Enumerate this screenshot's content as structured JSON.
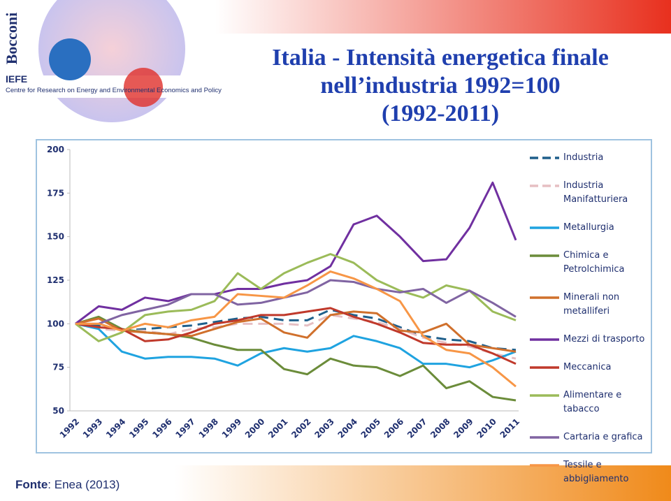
{
  "header": {
    "logo_name": "Bocconi",
    "logo_acronym": "IEFE",
    "logo_subtitle": "Centre for Research on Energy and Environmental Economics and Policy"
  },
  "chart_data": {
    "type": "line",
    "title": [
      "Italia - Intensità energetica finale",
      "nell’industria 1992=100",
      "(1992-2011)"
    ],
    "categories": [
      "1992",
      "1993",
      "1994",
      "1995",
      "1996",
      "1997",
      "1998",
      "1999",
      "2000",
      "2001",
      "2002",
      "2003",
      "2004",
      "2005",
      "2006",
      "2007",
      "2008",
      "2009",
      "2010",
      "2011"
    ],
    "ylim": [
      50,
      200
    ],
    "yticks": [
      50,
      75,
      100,
      125,
      150,
      175,
      200
    ],
    "grid": false,
    "legend": "right",
    "series": [
      {
        "name": "Industria",
        "color": "#1f5f8b",
        "style": "dashed",
        "values": [
          100,
          99,
          96,
          97,
          98,
          99,
          101,
          103,
          104,
          102,
          102,
          108,
          105,
          103,
          98,
          93,
          91,
          90,
          86,
          85
        ]
      },
      {
        "name": "Industria Manifatturiera",
        "color": "#e6bfc3",
        "style": "dashed",
        "values": [
          100,
          97,
          96,
          96,
          94,
          97,
          98,
          100,
          100,
          100,
          99,
          105,
          103,
          101,
          97,
          92,
          89,
          87,
          83,
          80
        ]
      },
      {
        "name": "Metallurgia",
        "color": "#1fa3e0",
        "style": "solid",
        "values": [
          100,
          97,
          84,
          80,
          81,
          81,
          80,
          76,
          83,
          86,
          84,
          86,
          93,
          90,
          86,
          77,
          77,
          75,
          79,
          84
        ]
      },
      {
        "name": "Chimica e Petrolchimica",
        "color": "#6b8c3a",
        "style": "solid",
        "values": [
          100,
          104,
          97,
          95,
          94,
          92,
          88,
          85,
          85,
          74,
          71,
          80,
          76,
          75,
          70,
          76,
          63,
          67,
          58,
          56
        ]
      },
      {
        "name": "Minerali non metalliferi",
        "color": "#d0702c",
        "style": "solid",
        "values": [
          100,
          103,
          96,
          95,
          94,
          93,
          97,
          101,
          103,
          95,
          92,
          105,
          107,
          106,
          96,
          95,
          100,
          88,
          86,
          84
        ]
      },
      {
        "name": "Mezzi di trasporto",
        "color": "#7030a0",
        "style": "solid",
        "values": [
          100,
          110,
          108,
          115,
          113,
          117,
          117,
          120,
          120,
          123,
          125,
          133,
          157,
          162,
          150,
          136,
          137,
          155,
          181,
          148
        ]
      },
      {
        "name": "Meccanica",
        "color": "#c0392b",
        "style": "solid",
        "values": [
          100,
          98,
          97,
          90,
          91,
          95,
          100,
          102,
          105,
          105,
          107,
          109,
          104,
          100,
          95,
          89,
          88,
          88,
          83,
          77
        ]
      },
      {
        "name": "Alimentare e tabacco",
        "color": "#9bbb59",
        "style": "solid",
        "values": [
          100,
          90,
          95,
          105,
          107,
          108,
          113,
          129,
          120,
          129,
          135,
          140,
          135,
          125,
          119,
          115,
          122,
          119,
          107,
          102
        ]
      },
      {
        "name": "Cartaria e grafica",
        "color": "#8064a2",
        "style": "solid",
        "values": [
          100,
          100,
          105,
          108,
          111,
          117,
          117,
          111,
          112,
          115,
          118,
          125,
          124,
          120,
          118,
          120,
          112,
          119,
          112,
          104
        ]
      },
      {
        "name": "Tessile e abbigliamento",
        "color": "#f79646",
        "style": "solid",
        "values": [
          100,
          100,
          96,
          100,
          98,
          102,
          104,
          117,
          116,
          115,
          122,
          130,
          126,
          120,
          113,
          93,
          85,
          83,
          75,
          64
        ]
      }
    ]
  },
  "footer": {
    "label": "Fonte",
    "text": ": Enea (2013)"
  }
}
